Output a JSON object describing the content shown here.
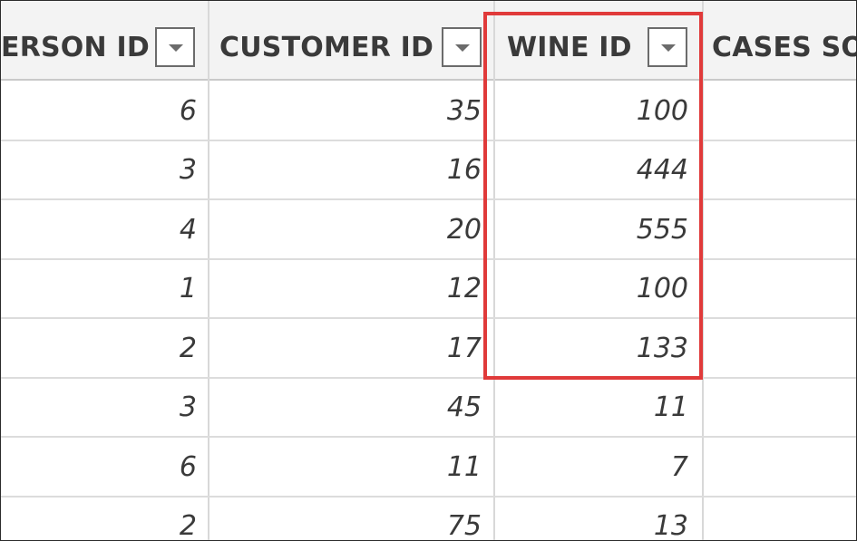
{
  "columns": [
    {
      "label": "ERSON ID"
    },
    {
      "label": "CUSTOMER ID"
    },
    {
      "label": "WINE ID"
    },
    {
      "label": "CASES SOL"
    }
  ],
  "rows": [
    {
      "person_id": "6",
      "customer_id": "35",
      "wine_id": "100"
    },
    {
      "person_id": "3",
      "customer_id": "16",
      "wine_id": "444"
    },
    {
      "person_id": "4",
      "customer_id": "20",
      "wine_id": "555"
    },
    {
      "person_id": "1",
      "customer_id": "12",
      "wine_id": "100"
    },
    {
      "person_id": "2",
      "customer_id": "17",
      "wine_id": "133"
    },
    {
      "person_id": "3",
      "customer_id": "45",
      "wine_id": "11"
    },
    {
      "person_id": "6",
      "customer_id": "11",
      "wine_id": "7"
    },
    {
      "person_id": "2",
      "customer_id": "75",
      "wine_id": "13"
    }
  ],
  "colors": {
    "highlight": "#e03a3a",
    "header_bg": "#f3f3f3",
    "text": "#3a3a3a"
  }
}
